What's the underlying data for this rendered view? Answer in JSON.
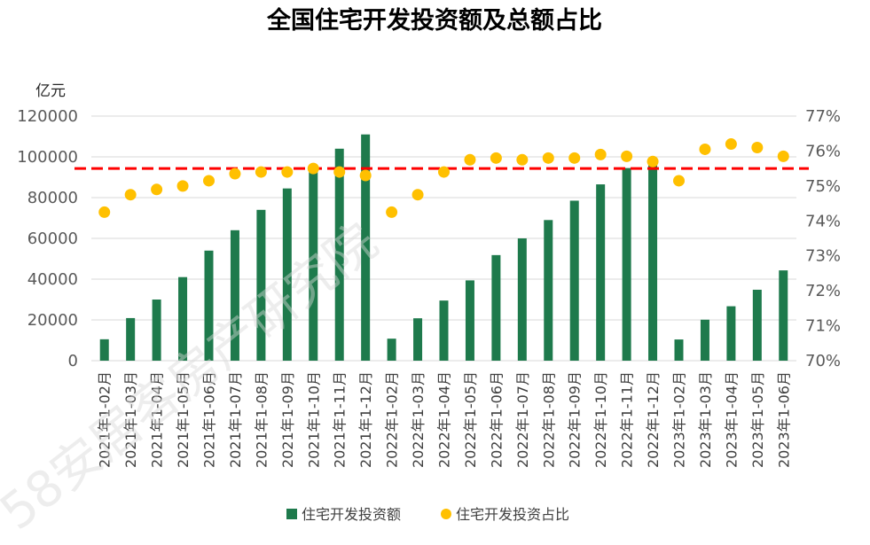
{
  "chart_data": {
    "type": "bar+scatter",
    "title": "全国住宅开发投资额及总额占比",
    "y_left_unit": "亿元",
    "y_left_ticks": [
      "120000",
      "100000",
      "80000",
      "60000",
      "40000",
      "20000",
      "0"
    ],
    "y_left_range": [
      0,
      120000
    ],
    "y_right_ticks": [
      "77%",
      "76%",
      "75%",
      "74%",
      "73%",
      "72%",
      "71%",
      "70%"
    ],
    "y_right_range": [
      70,
      77
    ],
    "categories": [
      "2021年1-02月",
      "2021年1-03月",
      "2021年1-04月",
      "2021年1-05月",
      "2021年1-06月",
      "2021年1-07月",
      "2021年1-08月",
      "2021年1-09月",
      "2021年1-10月",
      "2021年1-11月",
      "2021年1-12月",
      "2022年1-02月",
      "2022年1-03月",
      "2022年1-04月",
      "2022年1-05月",
      "2022年1-06月",
      "2022年1-07月",
      "2022年1-08月",
      "2022年1-09月",
      "2022年1-10月",
      "2022年1-11月",
      "2022年1-12月",
      "2023年1-02月",
      "2023年1-03月",
      "2023年1-04月",
      "2023年1-05月",
      "2023年1-06月"
    ],
    "series": [
      {
        "name": "住宅开发投资额",
        "type": "bar",
        "axis": "left",
        "color": "#1e7a4c",
        "values": [
          10500,
          20900,
          30000,
          41000,
          54000,
          64000,
          74000,
          84500,
          93000,
          104000,
          111000,
          10800,
          20800,
          29500,
          39400,
          51800,
          60000,
          69000,
          78500,
          86500,
          94500,
          96000,
          10400,
          20100,
          26700,
          34800,
          44300
        ]
      },
      {
        "name": "住宅开发投资占比",
        "type": "scatter",
        "axis": "right",
        "color": "#ffc000",
        "values": [
          74.25,
          74.75,
          74.9,
          75.0,
          75.15,
          75.35,
          75.4,
          75.4,
          75.5,
          75.4,
          75.3,
          74.25,
          74.75,
          75.4,
          75.75,
          75.8,
          75.75,
          75.8,
          75.8,
          75.9,
          75.85,
          75.7,
          75.15,
          76.05,
          76.2,
          76.1,
          75.85
        ]
      }
    ],
    "reference_line": {
      "axis": "right",
      "value": 75.5,
      "style": "dashed",
      "color": "#ff0000"
    },
    "gridlines": true,
    "legend_position": "bottom"
  },
  "watermark": "58安居客房产研究院",
  "colors": {
    "grid": "#d9d9d9",
    "axis_text": "#595959"
  }
}
